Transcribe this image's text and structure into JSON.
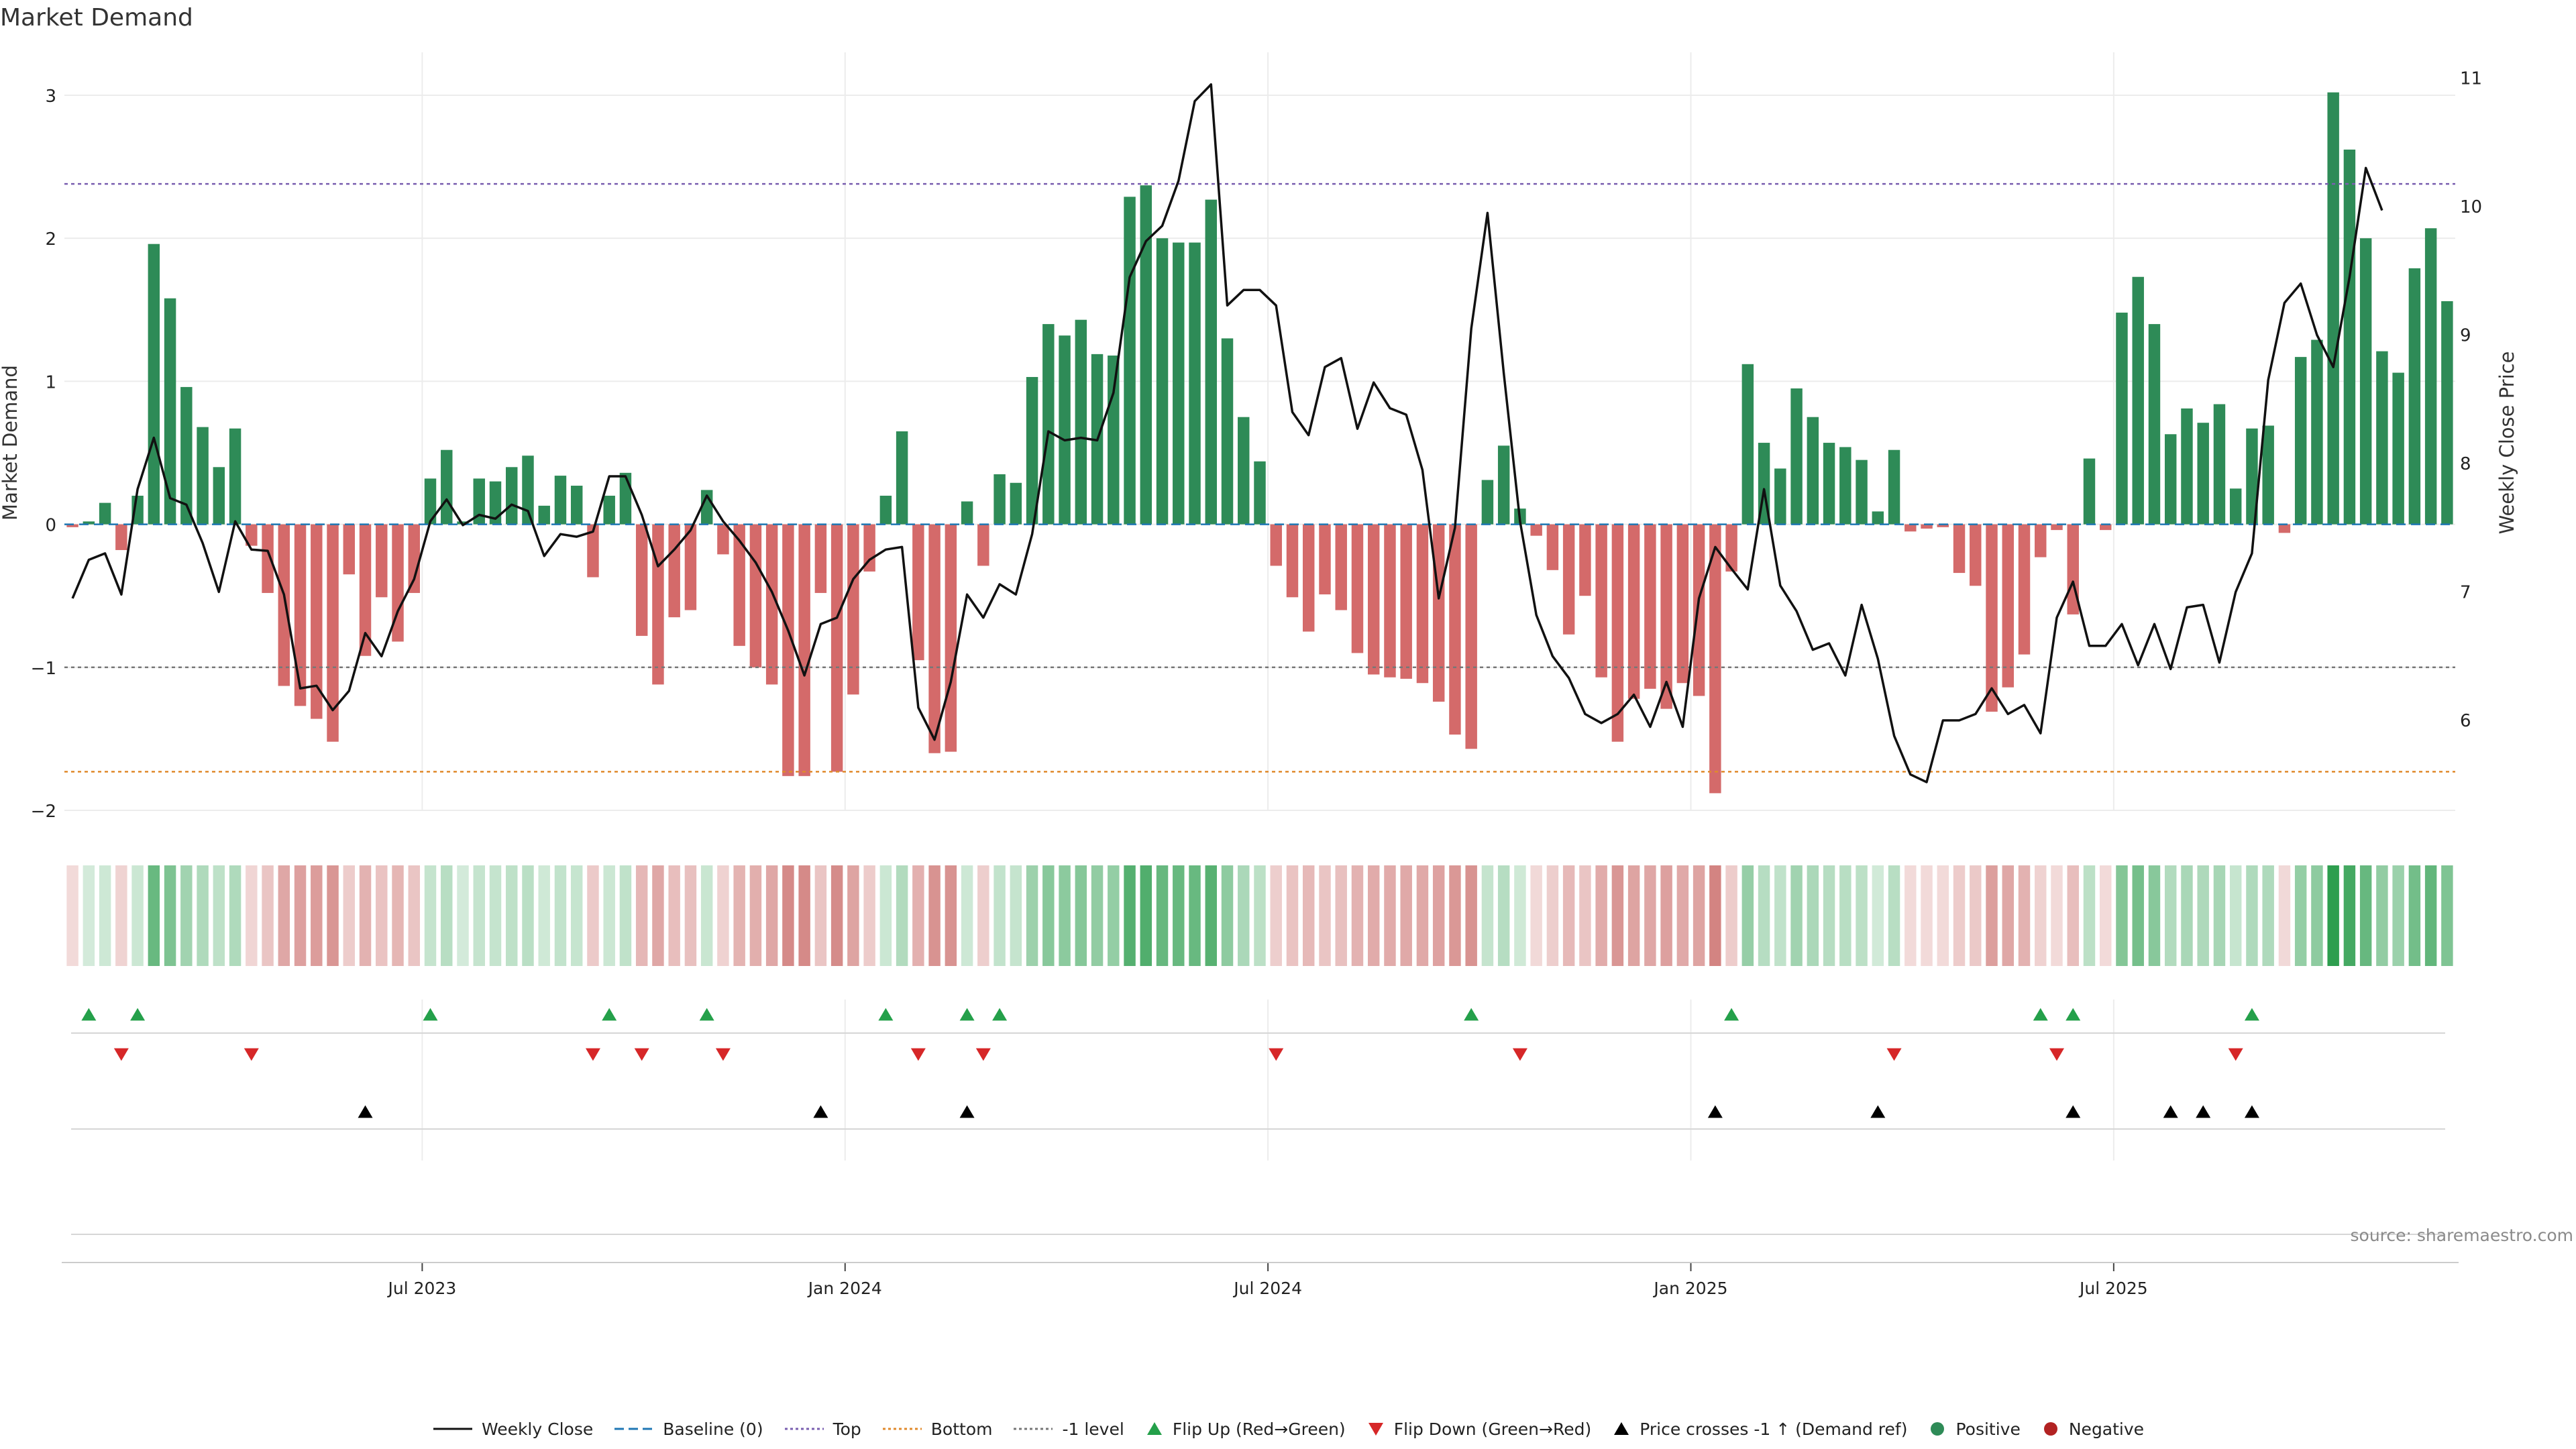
{
  "chart_data": {
    "type": "bar+line",
    "title": "Market Demand",
    "ylabel_left": "Market Demand",
    "ylabel_right": "Weekly Close Price",
    "ylim_left": [
      -2.0,
      3.3
    ],
    "ylim_right": [
      5.3,
      11.2
    ],
    "yticks_left": [
      3,
      2,
      1,
      0,
      -1,
      -2
    ],
    "yticks_left_labels": [
      "3",
      "2",
      "1",
      "0",
      "−1",
      "−2"
    ],
    "yticks_right": [
      11,
      10,
      9,
      8,
      7,
      6
    ],
    "yticks_right_labels": [
      "11",
      "10",
      "9",
      "8",
      "7",
      "6"
    ],
    "xtick_labels": [
      "Jul 2023",
      "Jan 2024",
      "Jul 2024",
      "Jan 2025",
      "Jul 2025"
    ],
    "xtick_week_index": [
      22,
      48,
      74,
      100,
      126
    ],
    "reference_lines": [
      {
        "name": "Baseline (0)",
        "value": 0,
        "color": "#1f77b4"
      },
      {
        "name": "Top",
        "value": 2.38,
        "color": "#7a5fb0"
      },
      {
        "name": "Bottom",
        "value": -1.73,
        "color": "#e08a2c"
      },
      {
        "name": "-1 level",
        "value": -1.0,
        "color": "#777777"
      }
    ],
    "demand": [
      -0.02,
      0.02,
      0.15,
      -0.18,
      0.2,
      1.96,
      1.58,
      0.96,
      0.68,
      0.4,
      0.67,
      -0.15,
      -0.48,
      -1.13,
      -1.27,
      -1.36,
      -1.52,
      -0.35,
      -0.92,
      -0.51,
      -0.82,
      -0.48,
      0.32,
      0.52,
      0.02,
      0.32,
      0.3,
      0.4,
      0.48,
      0.13,
      0.34,
      0.27,
      -0.37,
      0.2,
      0.36,
      -0.78,
      -1.12,
      -0.65,
      -0.6,
      0.24,
      -0.21,
      -0.85,
      -1.0,
      -1.12,
      -1.76,
      -1.76,
      -0.48,
      -1.73,
      -1.19,
      -0.33,
      0.2,
      0.65,
      -0.95,
      -1.6,
      -1.59,
      0.16,
      -0.29,
      0.35,
      0.29,
      1.03,
      1.4,
      1.32,
      1.43,
      1.19,
      1.18,
      2.29,
      2.37,
      2.0,
      1.97,
      1.97,
      2.27,
      1.3,
      0.75,
      0.44,
      -0.29,
      -0.51,
      -0.75,
      -0.49,
      -0.6,
      -0.9,
      -1.05,
      -1.07,
      -1.08,
      -1.11,
      -1.24,
      -1.47,
      -1.57,
      0.31,
      0.55,
      0.11,
      -0.08,
      -0.32,
      -0.77,
      -0.5,
      -1.07,
      -1.52,
      -1.22,
      -1.15,
      -1.29,
      -1.11,
      -1.2,
      -1.88,
      -0.33,
      1.12,
      0.57,
      0.39,
      0.95,
      0.75,
      0.57,
      0.54,
      0.45,
      0.09,
      0.52,
      -0.05,
      -0.03,
      -0.02,
      -0.34,
      -0.43,
      -1.31,
      -1.14,
      -0.91,
      -0.23,
      -0.04,
      -0.63,
      0.46,
      -0.04,
      1.48,
      1.73,
      1.4,
      0.63,
      0.81,
      0.71,
      0.84,
      0.25,
      0.67,
      0.69,
      -0.06,
      1.17,
      1.29,
      3.02,
      2.62,
      2.0,
      1.21,
      1.06,
      1.79,
      2.07,
      1.56
    ],
    "price": [
      6.95,
      7.25,
      7.3,
      6.98,
      7.8,
      8.2,
      7.73,
      7.68,
      7.38,
      7.0,
      7.55,
      7.33,
      7.32,
      6.98,
      6.25,
      6.27,
      6.08,
      6.23,
      6.68,
      6.5,
      6.85,
      7.1,
      7.55,
      7.72,
      7.52,
      7.6,
      7.57,
      7.68,
      7.63,
      7.28,
      7.45,
      7.43,
      7.47,
      7.9,
      7.9,
      7.6,
      7.2,
      7.33,
      7.48,
      7.75,
      7.55,
      7.4,
      7.23,
      7.0,
      6.7,
      6.35,
      6.75,
      6.8,
      7.1,
      7.25,
      7.33,
      7.35,
      6.1,
      5.85,
      6.3,
      6.98,
      6.8,
      7.06,
      6.98,
      7.45,
      8.25,
      8.18,
      8.2,
      8.18,
      8.55,
      9.45,
      9.73,
      9.85,
      10.2,
      10.82,
      10.95,
      9.23,
      9.35,
      9.35,
      9.23,
      8.4,
      8.22,
      8.75,
      8.82,
      8.27,
      8.63,
      8.43,
      8.38,
      7.95,
      6.95,
      7.5,
      9.05,
      9.95,
      8.7,
      7.55,
      6.82,
      6.5,
      6.33,
      6.05,
      5.98,
      6.05,
      6.2,
      5.95,
      6.3,
      5.95,
      6.95,
      7.35,
      7.18,
      7.02,
      7.8,
      7.05,
      6.85,
      6.55,
      6.6,
      6.35,
      6.9,
      6.48,
      5.88,
      5.58,
      5.52,
      6.0,
      6.0,
      6.05,
      6.25,
      6.05,
      6.12,
      5.9,
      6.8,
      7.08,
      6.58,
      6.58,
      6.75,
      6.43,
      6.75,
      6.4,
      6.88,
      6.9,
      6.45,
      7.0,
      7.3,
      8.65,
      9.25,
      9.4,
      9.0,
      8.75,
      9.45,
      10.3,
      9.97
    ],
    "flip_up_index": [
      1,
      4,
      22,
      33,
      39,
      50,
      55,
      57,
      86,
      102,
      121,
      123,
      134
    ],
    "flip_down_index": [
      3,
      11,
      32,
      35,
      40,
      52,
      56,
      74,
      89,
      112,
      122,
      133
    ],
    "price_cross_index": [
      18,
      46,
      55,
      101,
      111,
      123,
      129,
      131,
      134
    ]
  },
  "legend": [
    {
      "key": "weekly_close",
      "label": "Weekly Close",
      "style": "line",
      "color": "#111111"
    },
    {
      "key": "baseline",
      "label": "Baseline (0)",
      "style": "dashed",
      "color": "#1f77b4"
    },
    {
      "key": "top",
      "label": "Top",
      "style": "dotted",
      "color": "#7a5fb0"
    },
    {
      "key": "bottom",
      "label": "Bottom",
      "style": "dotted",
      "color": "#e08a2c"
    },
    {
      "key": "minus1",
      "label": "-1 level",
      "style": "dotted",
      "color": "#777777"
    },
    {
      "key": "flip_up",
      "label": "Flip Up (Red→Green)",
      "style": "triangle-up",
      "color": "#24a04a"
    },
    {
      "key": "flip_down",
      "label": "Flip Down (Green→Red)",
      "style": "triangle-down",
      "color": "#d62728"
    },
    {
      "key": "price_cross",
      "label": "Price crosses -1 ↑ (Demand ref)",
      "style": "triangle-up",
      "color": "#000000"
    },
    {
      "key": "positive",
      "label": "Positive",
      "style": "circle",
      "color": "#2e8b57"
    },
    {
      "key": "negative",
      "label": "Negative",
      "style": "circle",
      "color": "#b22222"
    }
  ],
  "colors": {
    "positive_bar": "#2e8b57",
    "negative_bar": "#d46a6a",
    "price_line": "#111111",
    "heat_positive": "#2e9e4f",
    "heat_negative": "#c0504d"
  },
  "source": "source: sharemaestro.com"
}
